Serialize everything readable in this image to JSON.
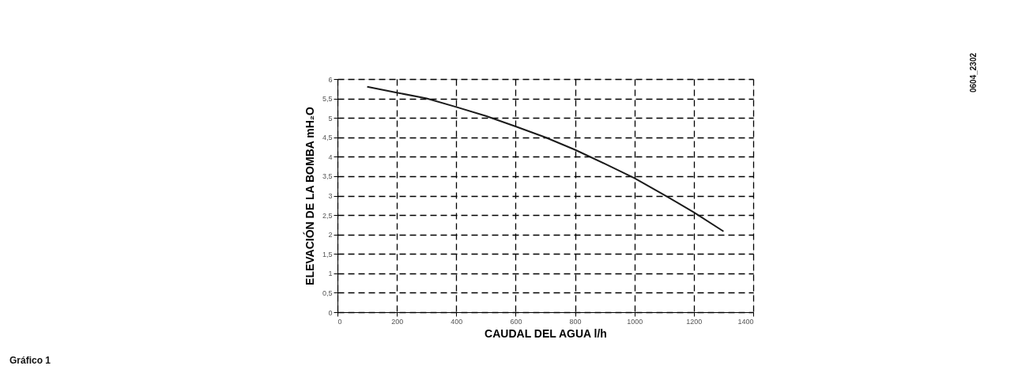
{
  "chart_data": {
    "type": "line",
    "xlabel": "CAUDAL DEL AGUA l/h",
    "ylabel": "ELEVACIÓN DE LA BOMBA mH₂O",
    "x": [
      100,
      200,
      300,
      400,
      500,
      600,
      700,
      800,
      900,
      1000,
      1100,
      1200,
      1300
    ],
    "series": [
      {
        "color": "#1a1a1a",
        "values": [
          5.8,
          5.65,
          5.5,
          5.28,
          5.05,
          4.78,
          4.5,
          4.18,
          3.82,
          3.45,
          3.02,
          2.57,
          2.08
        ]
      }
    ],
    "xlim": [
      0,
      1400
    ],
    "xticks": [
      0,
      200,
      400,
      600,
      800,
      1000,
      1200,
      1400
    ],
    "ylim": [
      0,
      6
    ],
    "yticks": [
      0,
      {
        "value": 0.5,
        "label": "0,5"
      },
      1,
      {
        "value": 1.5,
        "label": "1,5"
      },
      2,
      {
        "value": 2.5,
        "label": "2,5"
      },
      3,
      {
        "value": 3.5,
        "label": "3,5"
      },
      4,
      {
        "value": 4.5,
        "label": "4,5"
      },
      5,
      {
        "value": 5.5,
        "label": "5,5"
      },
      6
    ],
    "grid": true,
    "marker": "none",
    "line_style": "solid",
    "annotations": [
      "Gráfico 1",
      "0604_2302"
    ]
  }
}
